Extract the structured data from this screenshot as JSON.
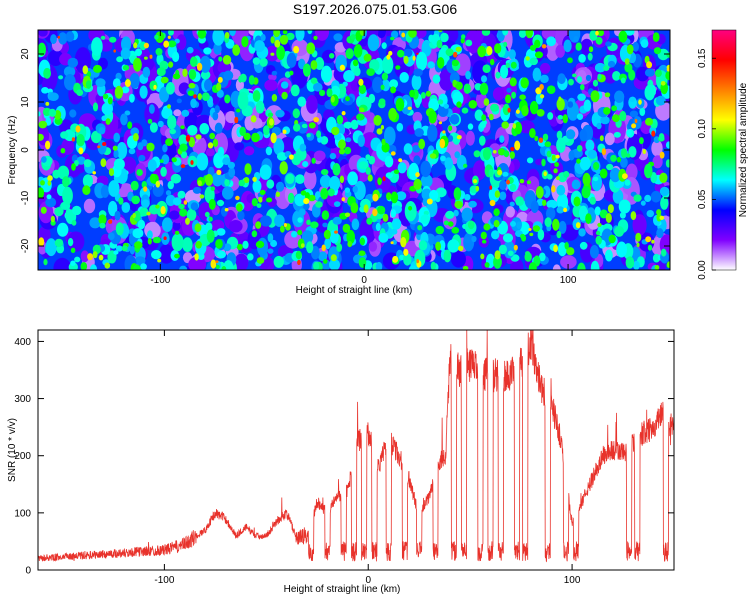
{
  "title": "S197.2026.075.01.53.G06",
  "chart_data": [
    {
      "type": "heatmap",
      "xlabel": "Height of straight line (km)",
      "ylabel": "Frequency (Hz)",
      "xlim": [
        -160,
        150
      ],
      "ylim": [
        -25,
        25
      ],
      "xticks": [
        -100,
        0,
        100
      ],
      "yticks": [
        -20,
        -10,
        0,
        10,
        20
      ],
      "colorbar": {
        "label": "Normalized spectral amplitude",
        "range": [
          0.0,
          0.17
        ],
        "ticks": [
          "0.00",
          "0.05",
          "0.10",
          "0.15"
        ],
        "tick_values": [
          0.0,
          0.05,
          0.1,
          0.15
        ],
        "colors": [
          "#ffffff",
          "#8000ff",
          "#0000ff",
          "#00ffff",
          "#00ff00",
          "#ffff00",
          "#ff8000",
          "#ff0000",
          "#ff0080"
        ]
      },
      "description_values": "noise-like speckle field, mostly low amplitudes (0.01-0.06) with scattered peaks up to ~0.15"
    },
    {
      "type": "line",
      "xlabel": "Height of straight line (km)",
      "ylabel": "SNR (10 * v/v)",
      "xlim": [
        -162,
        150
      ],
      "ylim": [
        0,
        420
      ],
      "xticks": [
        -100,
        0,
        100
      ],
      "yticks": [
        0,
        100,
        200,
        300,
        400
      ],
      "line_color": "#e8322b",
      "envelope": {
        "x": [
          -162,
          -140,
          -120,
          -100,
          -90,
          -80,
          -75,
          -70,
          -65,
          -60,
          -55,
          -50,
          -45,
          -40,
          -35,
          -30,
          -25,
          -20,
          -15,
          -10,
          -5,
          0,
          5,
          10,
          15,
          20,
          25,
          30,
          35,
          38,
          40,
          45,
          50,
          55,
          60,
          65,
          70,
          75,
          78,
          80,
          85,
          90,
          95,
          100,
          105,
          110,
          115,
          120,
          125,
          130,
          135,
          140,
          145,
          150
        ],
        "y": [
          20,
          25,
          30,
          35,
          45,
          70,
          100,
          90,
          60,
          75,
          60,
          60,
          85,
          100,
          55,
          60,
          120,
          100,
          130,
          140,
          225,
          240,
          180,
          230,
          200,
          160,
          95,
          130,
          190,
          200,
          370,
          350,
          360,
          345,
          340,
          340,
          340,
          360,
          390,
          400,
          320,
          290,
          220,
          80,
          120,
          160,
          200,
          210,
          205,
          220,
          240,
          250,
          280,
          240
        ],
        "dropouts_x": [
          -28,
          -20,
          -12,
          -7,
          -2,
          3,
          10,
          18,
          25,
          33,
          42,
          47,
          55,
          60,
          65,
          73,
          77,
          88,
          97,
          102,
          128,
          132,
          146
        ]
      }
    }
  ]
}
